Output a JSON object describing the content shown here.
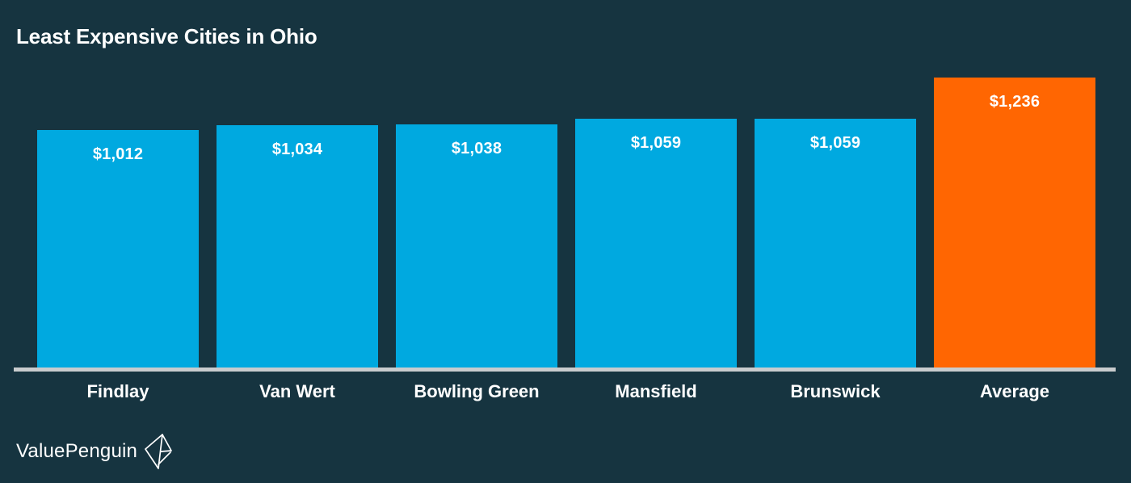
{
  "title": "Least Expensive Cities in Ohio",
  "colors": {
    "background": "#163440",
    "bar_blue": "#00A9E0",
    "bar_orange": "#FF6602",
    "axis_line": "#C9CCCE",
    "text": "#FFFFFF"
  },
  "chart_data": {
    "type": "bar",
    "title": "Least Expensive Cities in Ohio",
    "categories": [
      "Findlay",
      "Van Wert",
      "Bowling Green",
      "Mansfield",
      "Brunswick",
      "Average"
    ],
    "values": [
      1012,
      1034,
      1038,
      1059,
      1059,
      1236
    ],
    "value_labels": [
      "$1,012",
      "$1,034",
      "$1,038",
      "$1,059",
      "$1,059",
      "$1,236"
    ],
    "bar_colors": [
      "#00A9E0",
      "#00A9E0",
      "#00A9E0",
      "#00A9E0",
      "#00A9E0",
      "#FF6602"
    ],
    "xlabel": "",
    "ylabel": "",
    "ylim": [
      0,
      1236
    ],
    "grid": false,
    "legend": false,
    "highlight_category": "Average"
  },
  "footer": {
    "brand": "ValuePenguin"
  }
}
